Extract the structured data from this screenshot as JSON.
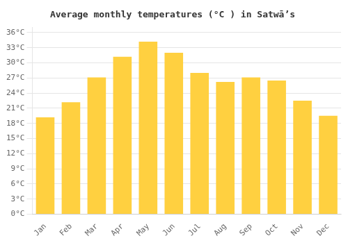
{
  "chart_data": {
    "type": "bar",
    "title": "Average monthly temperatures (°C ) in Satwāʼs",
    "categories": [
      "Jan",
      "Feb",
      "Mar",
      "Apr",
      "May",
      "Jun",
      "Jul",
      "Aug",
      "Sep",
      "Oct",
      "Nov",
      "Dec"
    ],
    "values": [
      19.2,
      22.2,
      27.1,
      31.2,
      34.2,
      32.0,
      28.0,
      26.2,
      27.1,
      26.5,
      22.5,
      19.5
    ],
    "color": "#FFD040",
    "ylim": [
      0,
      37
    ],
    "yticks": [
      {
        "value": 0,
        "label": "0°C"
      },
      {
        "value": 3,
        "label": "3°C"
      },
      {
        "value": 6,
        "label": "6°C"
      },
      {
        "value": 9,
        "label": "9°C"
      },
      {
        "value": 12,
        "label": "12°C"
      },
      {
        "value": 15,
        "label": "15°C"
      },
      {
        "value": 18,
        "label": "18°C"
      },
      {
        "value": 21,
        "label": "21°C"
      },
      {
        "value": 24,
        "label": "24°C"
      },
      {
        "value": 27,
        "label": "27°C"
      },
      {
        "value": 30,
        "label": "30°C"
      },
      {
        "value": 33,
        "label": "33°C"
      },
      {
        "value": 36,
        "label": "36°C"
      }
    ],
    "grid": true
  }
}
